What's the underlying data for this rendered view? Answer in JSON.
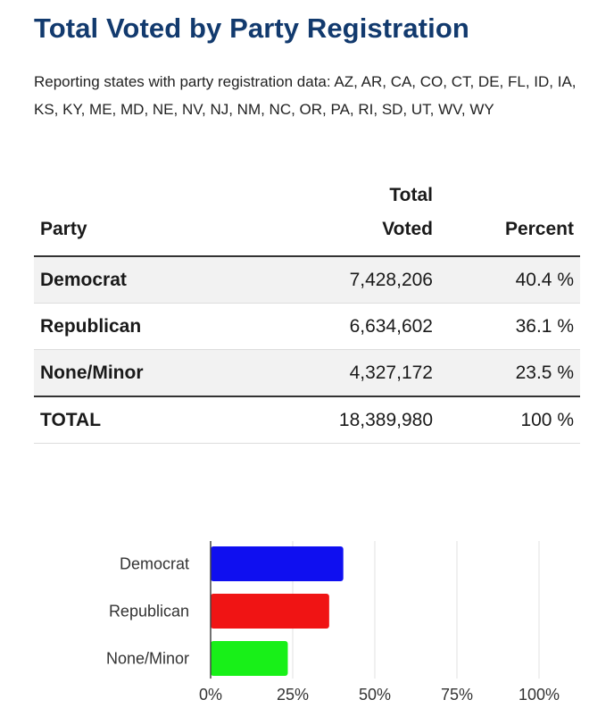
{
  "title": "Total Voted by Party Registration",
  "subtitle": "Reporting states with party registration data: AZ, AR, CA, CO, CT, DE, FL, ID, IA, KS, KY, ME, MD, NE, NV, NJ, NM, NC, OR, PA, RI, SD, UT, WV, WY",
  "table": {
    "headers": {
      "party": "Party",
      "total_line1": "Total",
      "total_line2": "Voted",
      "percent": "Percent"
    },
    "rows": [
      {
        "party": "Democrat",
        "total": "7,428,206",
        "percent": "40.4 %"
      },
      {
        "party": "Republican",
        "total": "6,634,602",
        "percent": "36.1 %"
      },
      {
        "party": "None/Minor",
        "total": "4,327,172",
        "percent": "23.5 %"
      }
    ],
    "total_row": {
      "party": "TOTAL",
      "total": "18,389,980",
      "percent": "100 %"
    }
  },
  "chart_data": {
    "type": "bar",
    "orientation": "horizontal",
    "categories": [
      "Democrat",
      "Republican",
      "None/Minor"
    ],
    "values": [
      40.4,
      36.1,
      23.5
    ],
    "colors": [
      "#0f0ff0",
      "#f01414",
      "#18f018"
    ],
    "xlim": [
      0,
      100
    ],
    "xticks": [
      "0%",
      "25%",
      "50%",
      "75%",
      "100%"
    ],
    "tick_values": [
      0,
      25,
      50,
      75,
      100
    ],
    "grid": true,
    "title": "",
    "xlabel": "",
    "ylabel": ""
  }
}
